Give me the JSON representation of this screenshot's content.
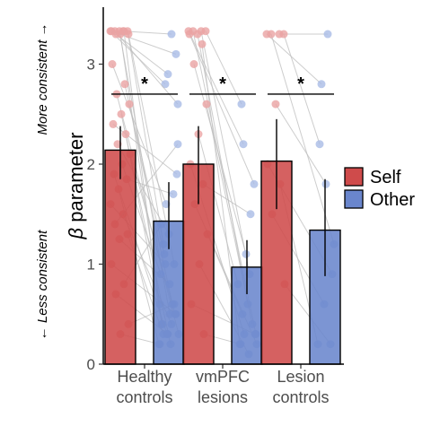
{
  "chart_data": {
    "type": "bar",
    "title": "",
    "ylabel_symbol": "β",
    "ylabel": "parameter",
    "ylim": [
      0,
      3.6
    ],
    "yticks": [
      "0",
      "1",
      "2",
      "3"
    ],
    "annotations": {
      "top": "More consistent →",
      "bottom": "← Less consistent"
    },
    "categories": [
      {
        "line1": "Healthy",
        "line2": "controls"
      },
      {
        "line1": "vmPFC",
        "line2": "lesions"
      },
      {
        "line1": "Lesion",
        "line2": "controls"
      }
    ],
    "series": [
      {
        "name": "Self",
        "color": "#cf4b4b",
        "values": [
          2.14,
          2.0,
          2.03
        ],
        "error_low": [
          1.85,
          1.6,
          1.55
        ],
        "error_high": [
          2.38,
          2.38,
          2.45
        ]
      },
      {
        "name": "Other",
        "color": "#6a86cd",
        "values": [
          1.43,
          0.97,
          1.34
        ],
        "error_low": [
          1.15,
          0.7,
          0.88
        ],
        "error_high": [
          1.82,
          1.24,
          1.85
        ]
      }
    ],
    "significance": [
      "*",
      "*",
      "*"
    ],
    "significance_y": 2.7,
    "legend": {
      "position": "right",
      "entries": [
        "Self",
        "Other"
      ]
    },
    "grid": false,
    "paired_points": [
      [
        [
          3.33,
          2.8
        ],
        [
          3.33,
          3.3
        ],
        [
          3.33,
          2.6
        ],
        [
          3.33,
          1.2
        ],
        [
          3.33,
          0.5
        ],
        [
          3.33,
          3.1
        ],
        [
          3.33,
          0.4
        ],
        [
          3.3,
          2.9
        ],
        [
          3.3,
          1.0
        ],
        [
          3.3,
          0.6
        ],
        [
          3.0,
          1.6
        ],
        [
          2.8,
          0.6
        ],
        [
          2.7,
          0.3
        ],
        [
          2.6,
          1.1
        ],
        [
          2.5,
          0.2
        ],
        [
          2.4,
          1.9
        ],
        [
          2.3,
          0.4
        ],
        [
          2.2,
          1.3
        ],
        [
          2.1,
          0.5
        ],
        [
          2.0,
          0.9
        ],
        [
          1.9,
          0.3
        ],
        [
          1.85,
          1.7
        ],
        [
          1.75,
          0.2
        ],
        [
          1.6,
          1.0
        ],
        [
          1.5,
          0.4
        ],
        [
          1.4,
          2.2
        ],
        [
          1.3,
          0.3
        ],
        [
          1.25,
          0.8
        ],
        [
          1.0,
          0.5
        ],
        [
          0.8,
          1.4
        ],
        [
          0.7,
          0.3
        ],
        [
          0.4,
          0.6
        ],
        [
          0.3,
          0.2
        ]
      ],
      [
        [
          3.33,
          2.2
        ],
        [
          3.33,
          0.9
        ],
        [
          3.33,
          0.3
        ],
        [
          3.33,
          2.6
        ],
        [
          3.3,
          0.6
        ],
        [
          3.3,
          1.8
        ],
        [
          3.2,
          0.2
        ],
        [
          3.0,
          1.1
        ],
        [
          2.6,
          0.4
        ],
        [
          2.3,
          0.8
        ],
        [
          2.0,
          0.3
        ],
        [
          1.8,
          1.5
        ],
        [
          1.6,
          0.2
        ],
        [
          1.3,
          0.5
        ],
        [
          1.0,
          0.1
        ],
        [
          0.6,
          0.3
        ],
        [
          0.3,
          0.2
        ]
      ],
      [
        [
          3.3,
          2.8
        ],
        [
          3.3,
          3.3
        ],
        [
          3.3,
          1.2
        ],
        [
          3.3,
          2.2
        ],
        [
          2.6,
          1.8
        ],
        [
          2.0,
          0.9
        ],
        [
          1.8,
          0.2
        ],
        [
          1.5,
          0.6
        ],
        [
          0.8,
          0.2
        ]
      ]
    ]
  }
}
